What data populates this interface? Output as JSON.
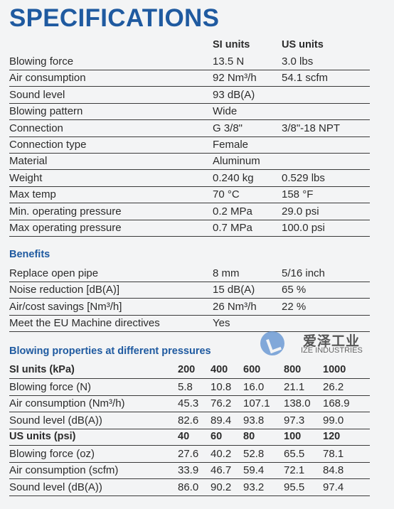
{
  "title": "SPECIFICATIONS",
  "spec_header": {
    "si": "SI units",
    "us": "US units"
  },
  "specs": [
    {
      "label": "Blowing force",
      "si": "13.5 N",
      "us": "3.0 lbs"
    },
    {
      "label": "Air consumption",
      "si": "92 Nm³/h",
      "us": "54.1 scfm"
    },
    {
      "label": "Sound level",
      "si": "93 dB(A)",
      "us": ""
    },
    {
      "label": "Blowing pattern",
      "si": "Wide",
      "us": ""
    },
    {
      "label": "Connection",
      "si": "G 3/8\"",
      "us": "3/8\"-18 NPT"
    },
    {
      "label": "Connection type",
      "si": "Female",
      "us": ""
    },
    {
      "label": "Material",
      "si": "Aluminum",
      "us": ""
    },
    {
      "label": "Weight",
      "si": "0.240 kg",
      "us": "0.529 lbs"
    },
    {
      "label": "Max temp",
      "si": "70 °C",
      "us": "158 °F"
    },
    {
      "label": "Min. operating pressure",
      "si": "0.2 MPa",
      "us": "29.0 psi"
    },
    {
      "label": "Max operating pressure",
      "si": "0.7 MPa",
      "us": "100.0 psi"
    }
  ],
  "benefits_title": "Benefits",
  "benefits": [
    {
      "label": "Replace open pipe",
      "si": "8 mm",
      "us": "5/16 inch"
    },
    {
      "label": "Noise reduction [dB(A)]",
      "si": "15 dB(A)",
      "us": "65 %"
    },
    {
      "label": "Air/cost savings [Nm³/h]",
      "si": "26 Nm³/h",
      "us": "22 %"
    },
    {
      "label": "Meet the EU Machine directives",
      "si": "Yes",
      "us": ""
    }
  ],
  "logo": {
    "cn": "爱泽工业",
    "en": "IZE INDUSTRIES"
  },
  "props_title": "Blowing properties at different pressures",
  "props": [
    {
      "head": true,
      "cells": [
        "SI units (kPa)",
        "200",
        "400",
        "600",
        "800",
        "1000"
      ]
    },
    {
      "head": false,
      "cells": [
        "Blowing force (N)",
        "5.8",
        "10.8",
        "16.0",
        "21.1",
        "26.2"
      ]
    },
    {
      "head": false,
      "cells": [
        "Air consumption (Nm³/h)",
        "45.3",
        "76.2",
        "107.1",
        "138.0",
        "168.9"
      ]
    },
    {
      "head": false,
      "cells": [
        "Sound level (dB(A))",
        "82.6",
        "89.4",
        "93.8",
        "97.3",
        "99.0"
      ]
    },
    {
      "head": true,
      "cells": [
        "US units (psi)",
        "40",
        "60",
        "80",
        "100",
        "120"
      ]
    },
    {
      "head": false,
      "cells": [
        "Blowing force (oz)",
        "27.6",
        "40.2",
        "52.8",
        "65.5",
        "78.1"
      ]
    },
    {
      "head": false,
      "cells": [
        "Air consumption (scfm)",
        "33.9",
        "46.7",
        "59.4",
        "72.1",
        "84.8"
      ]
    },
    {
      "head": false,
      "cells": [
        "Sound level (dB(A))",
        "86.0",
        "90.2",
        "93.2",
        "95.5",
        "97.4"
      ]
    }
  ]
}
